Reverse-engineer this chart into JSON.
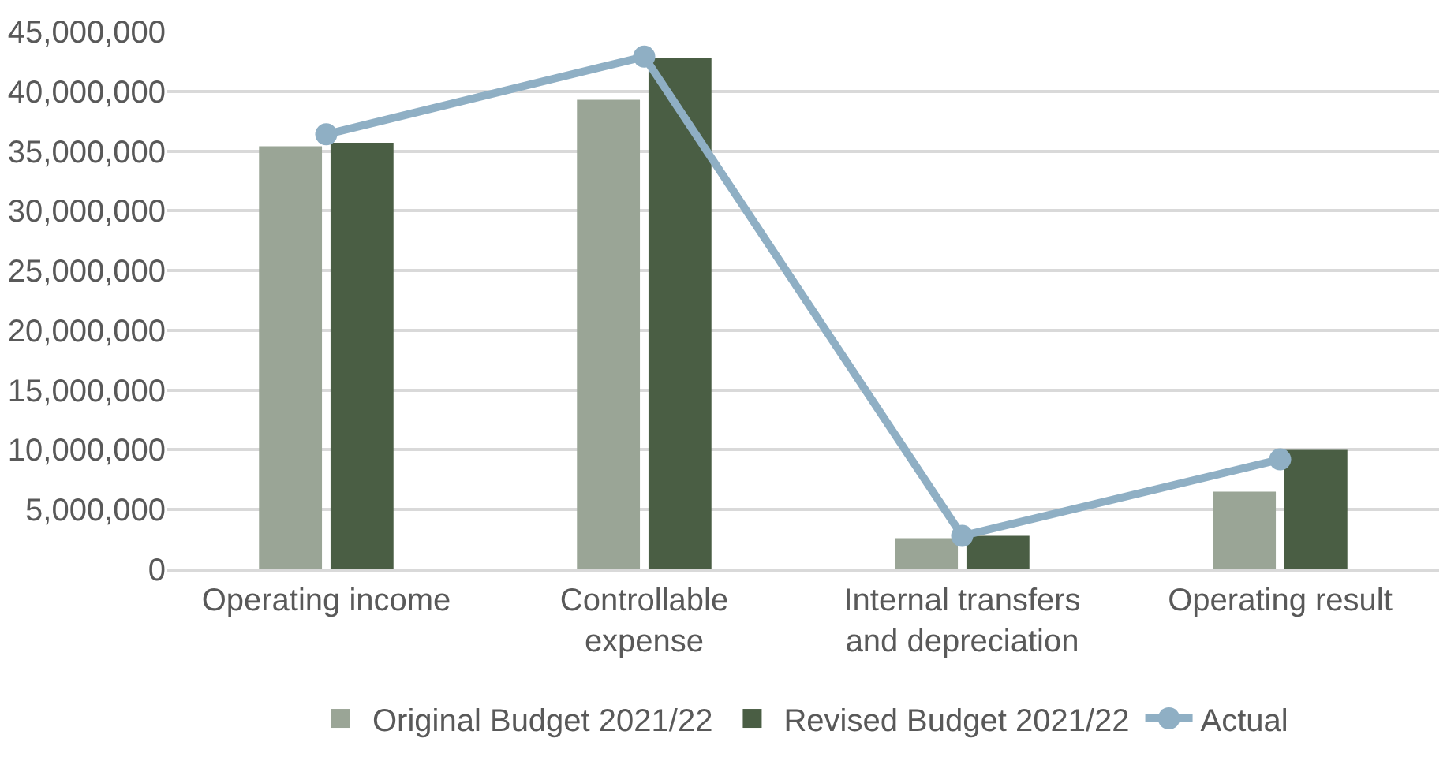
{
  "chart_data": {
    "type": "bar",
    "categories": [
      "Operating income",
      "Controllable expense",
      "Internal transfers and depreciation",
      "Operating result"
    ],
    "series": [
      {
        "name": "Original Budget 2021/22",
        "color": "#9aa596",
        "values": [
          35400000,
          39300000,
          2600000,
          6500000
        ]
      },
      {
        "name": "Revised Budget 2021/22",
        "color": "#4a5e44",
        "values": [
          35700000,
          42800000,
          2800000,
          10000000
        ]
      },
      {
        "name": "Actual",
        "type": "line",
        "color": "#8fafc4",
        "values": [
          36400000,
          42900000,
          2800000,
          9200000
        ]
      }
    ],
    "ylim": [
      0,
      45000000
    ],
    "yticks": [
      {
        "value": 0,
        "label": "0"
      },
      {
        "value": 5000000,
        "label": "5,000,000"
      },
      {
        "value": 10000000,
        "label": "10,000,000"
      },
      {
        "value": 15000000,
        "label": "15,000,000"
      },
      {
        "value": 20000000,
        "label": "20,000,000"
      },
      {
        "value": 25000000,
        "label": "25,000,000"
      },
      {
        "value": 30000000,
        "label": "30,000,000"
      },
      {
        "value": 35000000,
        "label": "35,000,000"
      },
      {
        "value": 40000000,
        "label": "40,000,000"
      },
      {
        "value": 45000000,
        "label": "45,000,000"
      }
    ],
    "grid": "y",
    "legend": "bottom",
    "marker": "circle",
    "line_style": "solid"
  }
}
